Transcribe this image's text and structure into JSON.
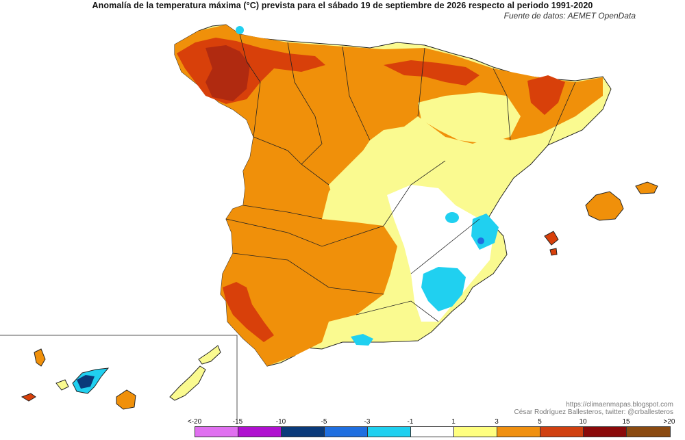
{
  "header": {
    "title": "Anomalía de la temperatura máxima (°C) prevista para el sábado 19 de septiembre de 2026 respecto al periodo 1991-2020",
    "source": "Fuente de datos: AEMET OpenData"
  },
  "credits": {
    "blog": "https://climaenmapas.blogspot.com",
    "author": "César Rodríguez Ballesteros, twitter: @crballesteros"
  },
  "legend": {
    "ticks": [
      "<-20",
      "-15",
      "-10",
      "-5",
      "-3",
      "-1",
      "1",
      "3",
      "5",
      "10",
      "15",
      ">20"
    ],
    "colors": [
      "#e070f0",
      "#b010d0",
      "#0a3a7a",
      "#1f6fe0",
      "#1fd0f0",
      "#ffffff",
      "#ffff80",
      "#f09010",
      "#d04010",
      "#8a0a0a",
      "#8a4a10"
    ]
  },
  "map_colors": {
    "neutral": "#ffffff",
    "slight_warm": "#fafa90",
    "warm": "#f0900a",
    "hot": "#d8400a",
    "very_hot": "#b02a10",
    "cool": "#20d0f0",
    "cold": "#1f6fe0",
    "very_cold": "#0a3a7a",
    "border": "#222222"
  }
}
